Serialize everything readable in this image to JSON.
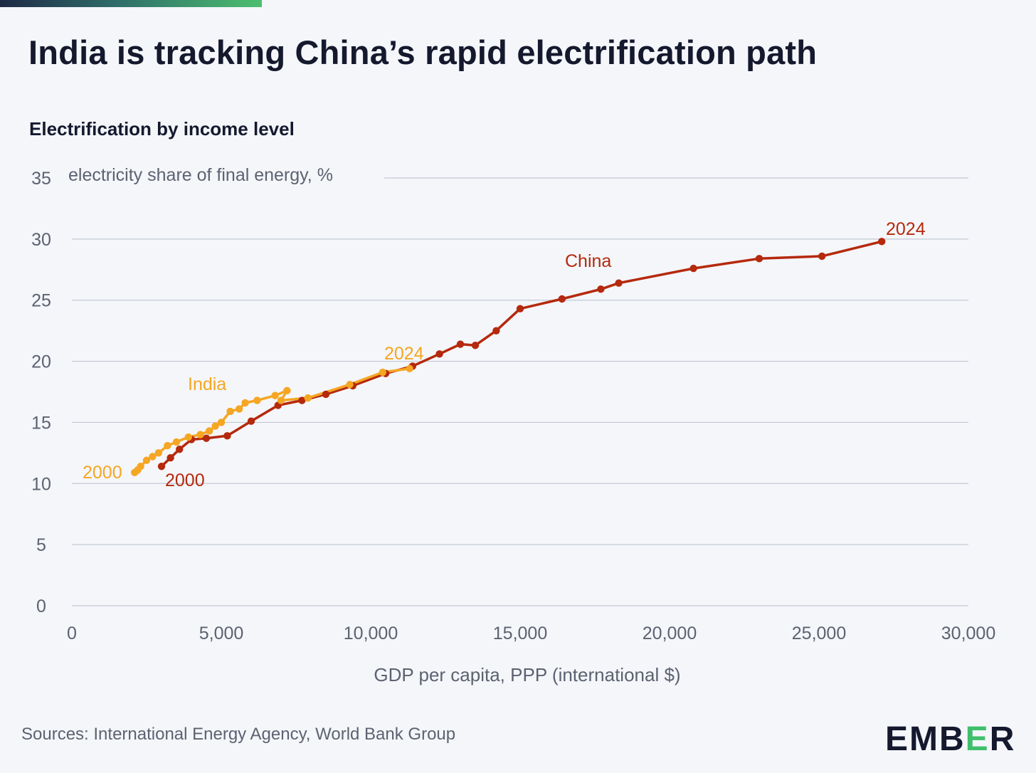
{
  "header": {
    "title": "India is tracking China’s rapid electrification path",
    "subtitle": "Electrification by income level"
  },
  "footer": {
    "source": "Sources: International Energy Agency, World Bank Group",
    "logo_pre": "EMB",
    "logo_accent": "E",
    "logo_post": "R"
  },
  "colors": {
    "china": "#b5290c",
    "india": "#f5a623",
    "grid": "#c3c8d3",
    "axis_text": "#5c6270"
  },
  "chart_data": {
    "type": "line",
    "ylabel": "electricity share of final energy, %",
    "xlabel": "GDP per capita, PPP (international $)",
    "xlim": [
      0,
      30000
    ],
    "ylim": [
      0,
      35
    ],
    "x_ticks": [
      0,
      5000,
      10000,
      15000,
      20000,
      25000,
      30000
    ],
    "x_tick_labels": [
      "0",
      "5,000",
      "10,000",
      "15,000",
      "20,000",
      "25,000",
      "30,000"
    ],
    "y_ticks": [
      0,
      5,
      10,
      15,
      20,
      25,
      30,
      35
    ],
    "y_tick_labels": [
      "0",
      "5",
      "10",
      "15",
      "20",
      "25",
      "30",
      "35"
    ],
    "grid": true,
    "series": [
      {
        "name": "China",
        "start_label": "2000",
        "end_label": "2024",
        "color": "#b5290c",
        "x": [
          3000,
          3300,
          3600,
          4000,
          4500,
          5200,
          6000,
          6900,
          7700,
          8500,
          9400,
          10500,
          11400,
          12300,
          13000,
          13500,
          14200,
          15000,
          16400,
          17700,
          18300,
          20800,
          23000,
          25100,
          27100
        ],
        "y": [
          11.4,
          12.1,
          12.8,
          13.6,
          13.7,
          13.9,
          15.1,
          16.4,
          16.8,
          17.3,
          18.0,
          19.0,
          19.6,
          20.6,
          21.4,
          21.3,
          22.5,
          24.3,
          25.1,
          25.9,
          26.4,
          27.6,
          28.4,
          28.6,
          29.8
        ]
      },
      {
        "name": "India",
        "start_label": "2000",
        "end_label": "2024",
        "color": "#f5a623",
        "x": [
          2100,
          2200,
          2300,
          2500,
          2700,
          2900,
          3200,
          3500,
          3900,
          4300,
          4600,
          4800,
          5000,
          5300,
          5600,
          5800,
          6200,
          6800,
          7200,
          7000,
          7900,
          9300,
          10400,
          11300
        ],
        "y": [
          10.9,
          11.1,
          11.4,
          11.9,
          12.2,
          12.5,
          13.1,
          13.4,
          13.8,
          14.0,
          14.3,
          14.7,
          15.0,
          15.9,
          16.1,
          16.6,
          16.8,
          17.2,
          17.6,
          16.8,
          17.0,
          18.1,
          19.1,
          19.4
        ]
      }
    ]
  }
}
